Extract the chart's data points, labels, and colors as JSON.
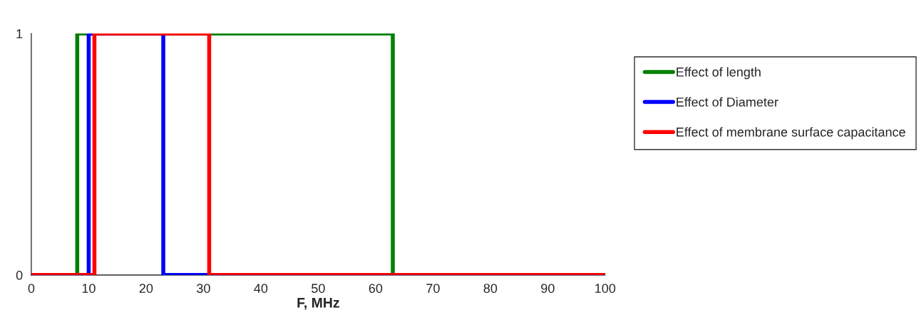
{
  "chart_data": {
    "type": "line",
    "xlabel": "F, MHz",
    "xlim": [
      0,
      100
    ],
    "xticks": [
      0,
      10,
      20,
      30,
      40,
      50,
      60,
      70,
      80,
      90,
      100
    ],
    "ylim": [
      0,
      1
    ],
    "yticks": [
      0,
      1
    ],
    "grid": false,
    "legend": "right",
    "series": [
      {
        "name": "Effect of length",
        "color": "#008000",
        "x": [
          0,
          8,
          8,
          63,
          63,
          100
        ],
        "values": [
          0,
          0,
          1,
          1,
          0,
          0
        ]
      },
      {
        "name": "Effect of Diameter",
        "color": "#0000ff",
        "x": [
          0,
          10,
          10,
          23,
          23,
          100
        ],
        "values": [
          0,
          0,
          1,
          1,
          0,
          0
        ]
      },
      {
        "name": "Effect of membrane surface capacitance",
        "color": "#ff0000",
        "x": [
          0,
          11,
          11,
          31,
          31,
          100
        ],
        "values": [
          0,
          0,
          1,
          1,
          0,
          0
        ]
      }
    ]
  }
}
